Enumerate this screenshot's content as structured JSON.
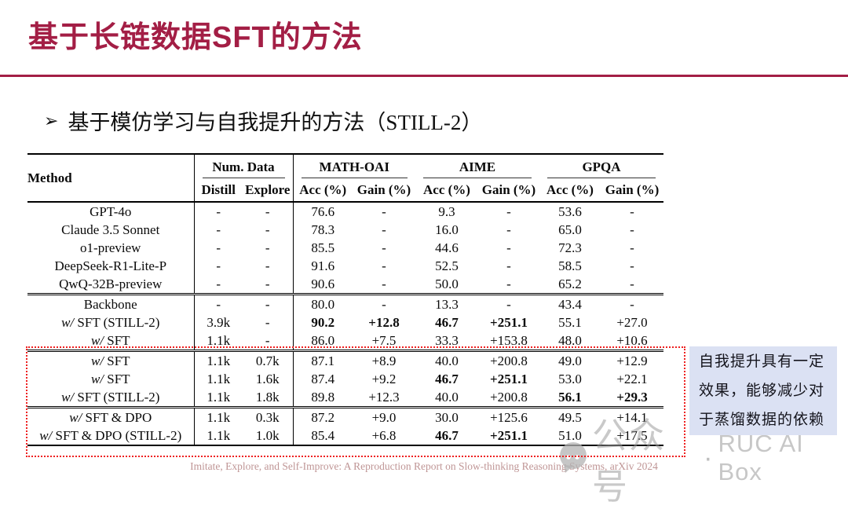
{
  "slide": {
    "title": "基于长链数据SFT的方法",
    "accent_color": "#A31E45",
    "bullet": {
      "marker": "➢",
      "text": "基于模仿学习与自我提升的方法（STILL-2）"
    },
    "footer": "Imitate, Explore, and Self-Improve: A Reproduction Report on Slow-thinking Reasoning Systems, arXiv 2024"
  },
  "table": {
    "header": {
      "method": "Method",
      "groups": [
        {
          "label": "Num. Data",
          "sub": [
            "Distill",
            "Explore"
          ]
        },
        {
          "label": "MATH-OAI",
          "sub": [
            "Acc (%)",
            "Gain (%)"
          ]
        },
        {
          "label": "AIME",
          "sub": [
            "Acc (%)",
            "Gain (%)"
          ]
        },
        {
          "label": "GPQA",
          "sub": [
            "Acc (%)",
            "Gain (%)"
          ]
        }
      ]
    },
    "groups": [
      {
        "rows": [
          {
            "method": "GPT-4o",
            "cells": [
              "-",
              "-",
              "76.6",
              "-",
              "9.3",
              "-",
              "53.6",
              "-"
            ],
            "bold": []
          },
          {
            "method": "Claude 3.5 Sonnet",
            "cells": [
              "-",
              "-",
              "78.3",
              "-",
              "16.0",
              "-",
              "65.0",
              "-"
            ],
            "bold": []
          },
          {
            "method": "o1-preview",
            "cells": [
              "-",
              "-",
              "85.5",
              "-",
              "44.6",
              "-",
              "72.3",
              "-"
            ],
            "bold": []
          },
          {
            "method": "DeepSeek-R1-Lite-P",
            "cells": [
              "-",
              "-",
              "91.6",
              "-",
              "52.5",
              "-",
              "58.5",
              "-"
            ],
            "bold": []
          },
          {
            "method": "QwQ-32B-preview",
            "cells": [
              "-",
              "-",
              "90.6",
              "-",
              "50.0",
              "-",
              "65.2",
              "-"
            ],
            "bold": []
          }
        ]
      },
      {
        "rows": [
          {
            "method": "Backbone",
            "cells": [
              "-",
              "-",
              "80.0",
              "-",
              "13.3",
              "-",
              "43.4",
              "-"
            ],
            "bold": []
          },
          {
            "method": "w/ SFT (STILL-2)",
            "cells": [
              "3.9k",
              "-",
              "90.2",
              "+12.8",
              "46.7",
              "+251.1",
              "55.1",
              "+27.0"
            ],
            "bold": [
              2,
              3,
              4,
              5
            ]
          },
          {
            "method": "w/ SFT",
            "cells": [
              "1.1k",
              "-",
              "86.0",
              "+7.5",
              "33.3",
              "+153.8",
              "48.0",
              "+10.6"
            ],
            "bold": []
          }
        ]
      },
      {
        "rows": [
          {
            "method": "w/ SFT",
            "cells": [
              "1.1k",
              "0.7k",
              "87.1",
              "+8.9",
              "40.0",
              "+200.8",
              "49.0",
              "+12.9"
            ],
            "bold": []
          },
          {
            "method": "w/ SFT",
            "cells": [
              "1.1k",
              "1.6k",
              "87.4",
              "+9.2",
              "46.7",
              "+251.1",
              "53.0",
              "+22.1"
            ],
            "bold": [
              4,
              5
            ]
          },
          {
            "method": "w/ SFT (STILL-2)",
            "cells": [
              "1.1k",
              "1.8k",
              "89.8",
              "+12.3",
              "40.0",
              "+200.8",
              "56.1",
              "+29.3"
            ],
            "bold": [
              6,
              7
            ]
          }
        ]
      },
      {
        "rows": [
          {
            "method": "w/ SFT & DPO",
            "cells": [
              "1.1k",
              "0.3k",
              "87.2",
              "+9.0",
              "30.0",
              "+125.6",
              "49.5",
              "+14.1"
            ],
            "bold": []
          },
          {
            "method": "w/ SFT & DPO (STILL-2)",
            "cells": [
              "1.1k",
              "1.0k",
              "85.4",
              "+6.8",
              "46.7",
              "+251.1",
              "51.0",
              "+17.5"
            ],
            "bold": [
              4,
              5
            ]
          }
        ]
      }
    ]
  },
  "annotation": {
    "bg_color": "#dbe1f3",
    "lines": [
      "自我提升具有一定",
      "效果，能够减少对",
      "于蒸馏数据的依赖"
    ]
  },
  "highlight_box_color": "#ee2020",
  "watermark": {
    "icon": "wechat-icon",
    "account_label": "公众号",
    "separator": "·",
    "brand": "RUC AI Box"
  }
}
